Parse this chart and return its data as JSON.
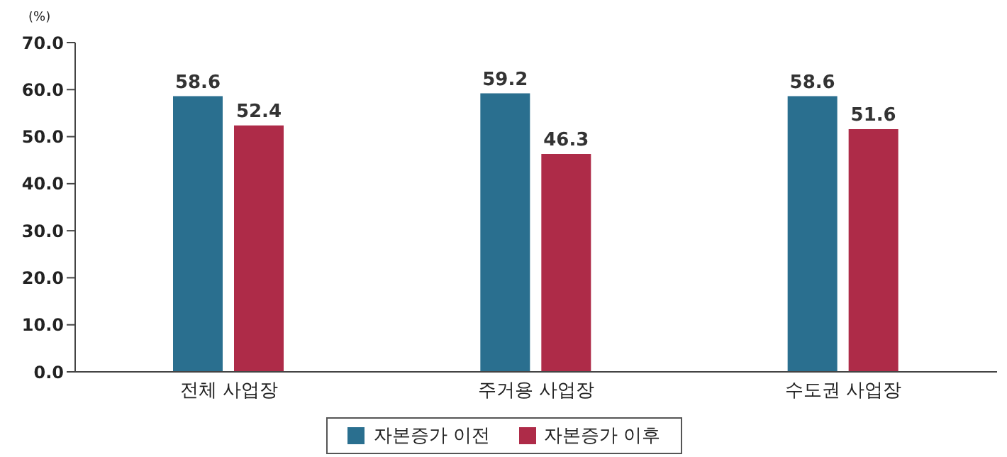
{
  "chart_data": {
    "type": "bar",
    "ylabel": "(%)",
    "categories": [
      "전체 사업장",
      "주거용 사업장",
      "수도권 사업장"
    ],
    "series": [
      {
        "name": "자본증가 이전",
        "color": "#2a6f8f",
        "values": [
          58.6,
          59.2,
          58.6
        ]
      },
      {
        "name": "자본증가 이후",
        "color": "#ae2b48",
        "values": [
          52.4,
          46.3,
          51.6
        ]
      }
    ],
    "ylim": [
      0,
      70
    ],
    "yticks": [
      {
        "value": 0,
        "label": "0.0"
      },
      {
        "value": 10,
        "label": "10.0"
      },
      {
        "value": 20,
        "label": "20.0"
      },
      {
        "value": 30,
        "label": "30.0"
      },
      {
        "value": 40,
        "label": "40.0"
      },
      {
        "value": 50,
        "label": "50.0"
      },
      {
        "value": 60,
        "label": "60.0"
      },
      {
        "value": 70,
        "label": "70.0"
      }
    ],
    "data_labels": true,
    "grid": false,
    "legend": "bottom"
  }
}
